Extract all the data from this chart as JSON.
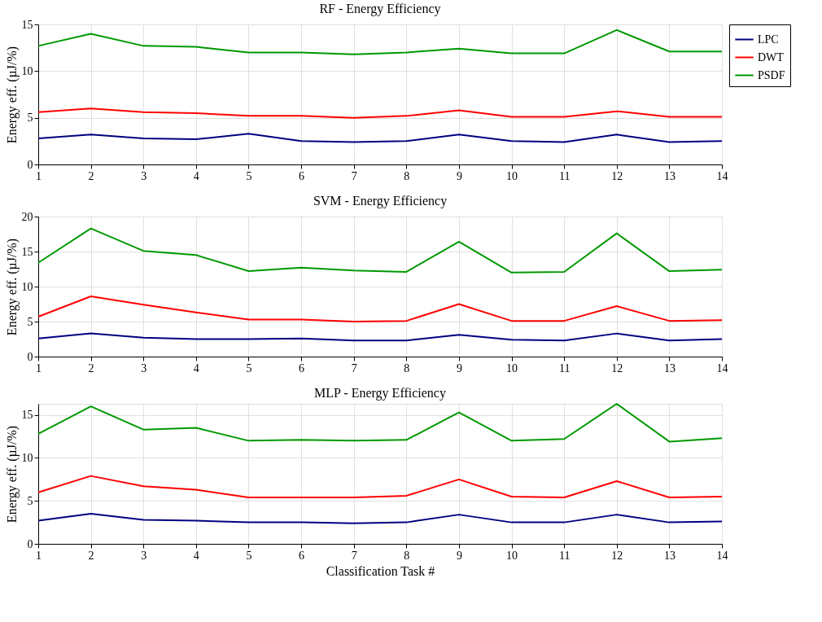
{
  "chart_data": [
    {
      "type": "line",
      "title": "RF - Energy Efficiency",
      "ylabel": "Energy eff. (µJ/%)",
      "x": [
        1,
        2,
        3,
        4,
        5,
        6,
        7,
        8,
        9,
        10,
        11,
        12,
        13,
        14
      ],
      "xlim": [
        1,
        14
      ],
      "xticks": [
        1,
        2,
        3,
        4,
        5,
        6,
        7,
        8,
        9,
        10,
        11,
        12,
        13,
        14
      ],
      "ylim": [
        0,
        15
      ],
      "yticks": [
        0,
        5,
        10,
        15
      ],
      "grid": true,
      "legend": "right",
      "series": [
        {
          "name": "LPC",
          "color": "#000080",
          "values": [
            2.8,
            3.2,
            2.8,
            2.7,
            3.3,
            2.5,
            2.4,
            2.5,
            3.2,
            2.5,
            2.4,
            3.2,
            2.4,
            2.5
          ]
        },
        {
          "name": "DWT",
          "color": "#ff0000",
          "values": [
            5.6,
            6.0,
            5.6,
            5.5,
            5.2,
            5.2,
            5.0,
            5.2,
            5.8,
            5.1,
            5.1,
            5.7,
            5.1,
            5.1
          ]
        },
        {
          "name": "PSDF",
          "color": "#009900",
          "values": [
            12.7,
            14.0,
            12.7,
            12.6,
            12.0,
            12.0,
            11.8,
            12.0,
            12.4,
            11.9,
            11.9,
            14.4,
            12.1,
            12.1
          ]
        }
      ]
    },
    {
      "type": "line",
      "title": "SVM - Energy Efficiency",
      "ylabel": "Energy eff. (µJ/%)",
      "x": [
        1,
        2,
        3,
        4,
        5,
        6,
        7,
        8,
        9,
        10,
        11,
        12,
        13,
        14
      ],
      "xlim": [
        1,
        14
      ],
      "xticks": [
        1,
        2,
        3,
        4,
        5,
        6,
        7,
        8,
        9,
        10,
        11,
        12,
        13,
        14
      ],
      "ylim": [
        0,
        20
      ],
      "yticks": [
        0,
        5,
        10,
        15,
        20
      ],
      "grid": true,
      "series": [
        {
          "color": "#000080",
          "values": [
            2.6,
            3.3,
            2.7,
            2.5,
            2.5,
            2.6,
            2.3,
            2.3,
            3.1,
            2.4,
            2.3,
            3.3,
            2.3,
            2.5
          ]
        },
        {
          "color": "#ff0000",
          "values": [
            5.7,
            8.6,
            7.4,
            6.3,
            5.3,
            5.3,
            5.0,
            5.1,
            7.5,
            5.1,
            5.1,
            7.2,
            5.1,
            5.2
          ]
        },
        {
          "color": "#009900",
          "values": [
            13.4,
            18.3,
            15.1,
            14.5,
            12.2,
            12.7,
            12.3,
            12.1,
            16.4,
            12.0,
            12.1,
            17.6,
            12.2,
            12.4
          ]
        }
      ]
    },
    {
      "type": "line",
      "title": "MLP - Energy Efficiency",
      "xlabel": "Classification Task #",
      "ylabel": "Energy eff. (µJ/%)",
      "x": [
        1,
        2,
        3,
        4,
        5,
        6,
        7,
        8,
        9,
        10,
        11,
        12,
        13,
        14
      ],
      "xlim": [
        1,
        14
      ],
      "xticks": [
        1,
        2,
        3,
        4,
        5,
        6,
        7,
        8,
        9,
        10,
        11,
        12,
        13,
        14
      ],
      "ylim": [
        0,
        16.3
      ],
      "yticks": [
        0,
        5,
        10,
        15
      ],
      "grid": true,
      "series": [
        {
          "color": "#000080",
          "values": [
            2.7,
            3.5,
            2.8,
            2.7,
            2.5,
            2.5,
            2.4,
            2.5,
            3.4,
            2.5,
            2.5,
            3.4,
            2.5,
            2.6
          ]
        },
        {
          "color": "#ff0000",
          "values": [
            6.0,
            7.9,
            6.7,
            6.3,
            5.4,
            5.4,
            5.4,
            5.6,
            7.5,
            5.5,
            5.4,
            7.3,
            5.4,
            5.5
          ]
        },
        {
          "color": "#009900",
          "values": [
            12.8,
            16.0,
            13.3,
            13.5,
            12.0,
            12.1,
            12.0,
            12.1,
            15.3,
            12.0,
            12.2,
            16.3,
            11.9,
            12.3
          ]
        }
      ]
    }
  ]
}
